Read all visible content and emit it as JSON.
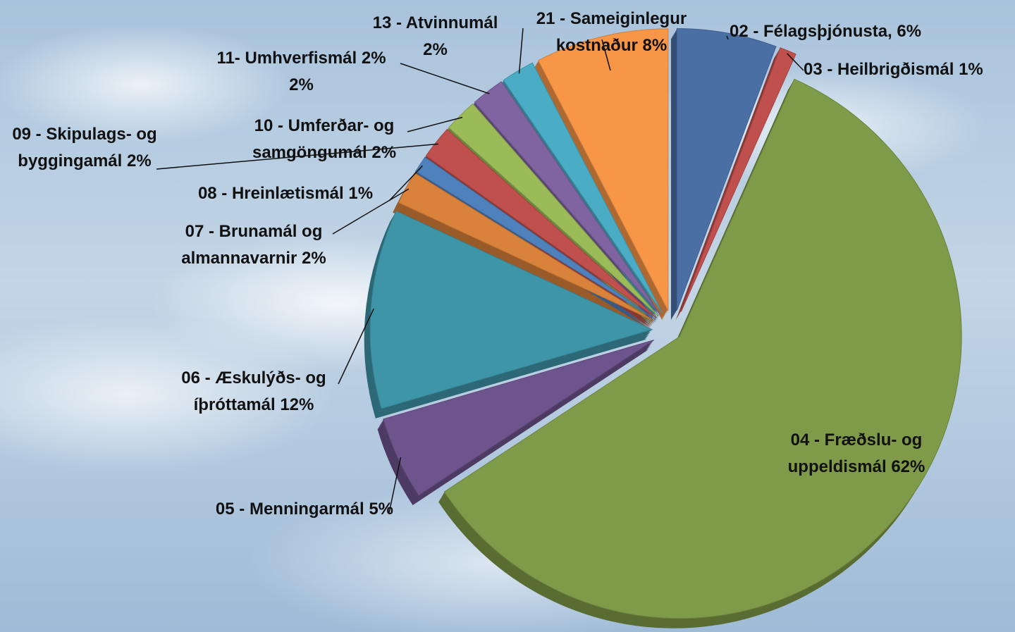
{
  "chart_data": {
    "type": "pie",
    "categories": [
      "02 - Félagsþjónusta,",
      "03 - Heilbrigðismál",
      "04 - Fræðslu- og uppeldismál",
      "05 - Menningarmál",
      "06 - Æskulýðs- og íþróttamál",
      "07 - Brunamál og almannavarnir",
      "08 - Hreinlætismál",
      "09 - Skipulags- og byggingamál",
      "10 - Umferðar- og samgöngumál",
      "11- Umhverfismál 2%",
      "13 - Atvinnumál",
      "21 - Sameiginlegur kostnaður"
    ],
    "values": [
      6,
      1,
      62,
      5,
      12,
      2,
      1,
      2,
      2,
      2,
      2,
      8
    ],
    "value_labels": [
      "6%",
      "1%",
      "62%",
      "5%",
      "12%",
      "2%",
      "1%",
      "2%",
      "2%",
      "2%",
      "2%",
      "8%"
    ],
    "colors": [
      "#4a6fa5",
      "#c0504d",
      "#7f9a48",
      "#6e548d",
      "#3f95a8",
      "#d9823b",
      "#4f81bd",
      "#c0504d",
      "#9bbb59",
      "#8064a2",
      "#4bacc6",
      "#f79646"
    ]
  }
}
